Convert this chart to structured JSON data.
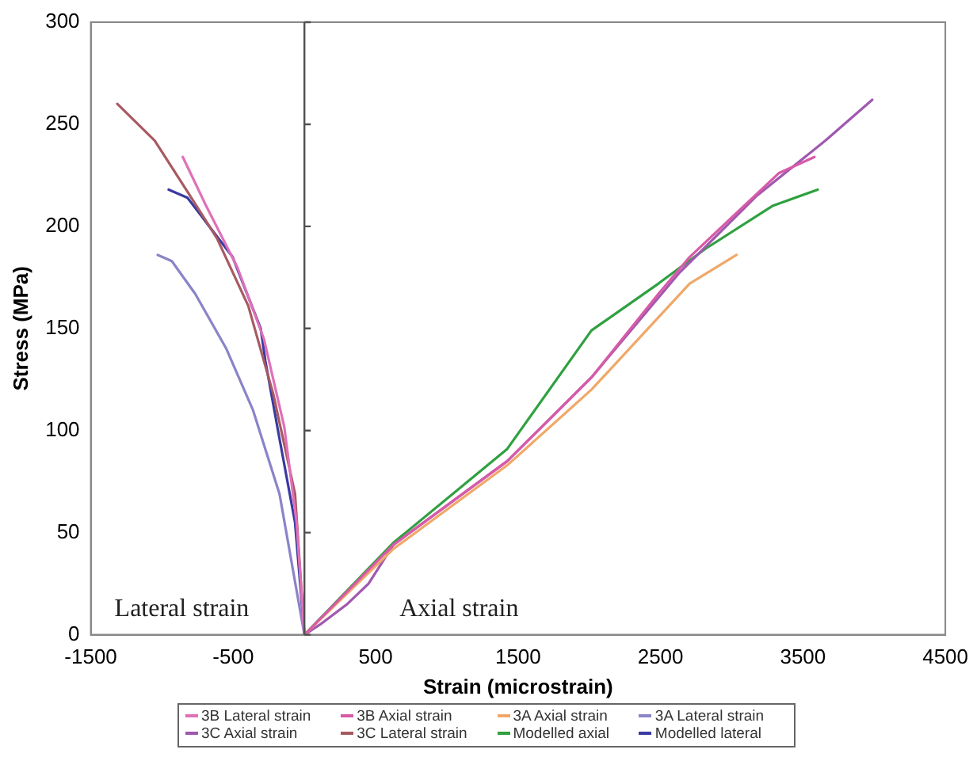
{
  "chart_data": {
    "type": "line",
    "xlabel": "Strain (microstrain)",
    "ylabel": "Stress (MPa)",
    "xlim": [
      -1500,
      4500
    ],
    "xticks": [
      -1500,
      -500,
      500,
      1500,
      2500,
      3500,
      4500
    ],
    "ylim": [
      0,
      300
    ],
    "yticks": [
      0,
      50,
      100,
      150,
      200,
      250,
      300
    ],
    "grid": false,
    "legend": "bottom",
    "marker": "none",
    "line_style": "solid",
    "ref_lines": [
      {
        "axis": "x",
        "value": 0,
        "color": "#505050"
      }
    ],
    "annotations": [
      "Lateral strain",
      "Axial strain"
    ],
    "series": [
      {
        "name": "3B Lateral strain",
        "color": "#e070b8",
        "x": [
          -854,
          -690,
          -471,
          -285,
          -142,
          -55,
          0
        ],
        "values": [
          234,
          210,
          180,
          145,
          102,
          55,
          0
        ]
      },
      {
        "name": "3B Axial strain",
        "color": "#d85aa8",
        "x": [
          0,
          624,
          1424,
          2015,
          2486,
          2705,
          3330,
          3581
        ],
        "values": [
          0,
          44,
          85,
          126,
          167,
          185,
          226,
          234
        ]
      },
      {
        "name": "3A Axial strain",
        "color": "#f0a868",
        "x": [
          0,
          624,
          1424,
          2015,
          2705,
          3034
        ],
        "values": [
          0,
          42,
          83,
          120,
          172,
          186
        ]
      },
      {
        "name": "3A Lateral strain",
        "color": "#8a84c8",
        "x": [
          -1030,
          -931,
          -767,
          -548,
          -361,
          -175,
          0
        ],
        "values": [
          186,
          183,
          167,
          140,
          110,
          69,
          0
        ]
      },
      {
        "name": "3C Axial strain",
        "color": "#a058b0",
        "x": [
          0,
          110,
          300,
          450,
          624,
          1424,
          2015,
          2629,
          3176,
          3658,
          3987
        ],
        "values": [
          0,
          5,
          15,
          25,
          44,
          85,
          126,
          177,
          215,
          242,
          262
        ]
      },
      {
        "name": "3C Lateral strain",
        "color": "#a85a62",
        "x": [
          -1314,
          -1051,
          -821,
          -613,
          -394,
          -219,
          -66,
          0
        ],
        "values": [
          260,
          242,
          217,
          194,
          161,
          118,
          69,
          0
        ]
      },
      {
        "name": "Modelled axial",
        "color": "#30a040",
        "x": [
          0,
          624,
          1424,
          2015,
          2486,
          2815,
          3286,
          3604
        ],
        "values": [
          0,
          45,
          91,
          149,
          172,
          189,
          210,
          218
        ]
      },
      {
        "name": "Modelled lateral",
        "color": "#3a3aa0",
        "x": [
          -953,
          -821,
          -690,
          -504,
          -307,
          -274,
          -175,
          -66,
          0
        ],
        "values": [
          218,
          214,
          202,
          185,
          150,
          134,
          96,
          55,
          0
        ]
      }
    ]
  }
}
